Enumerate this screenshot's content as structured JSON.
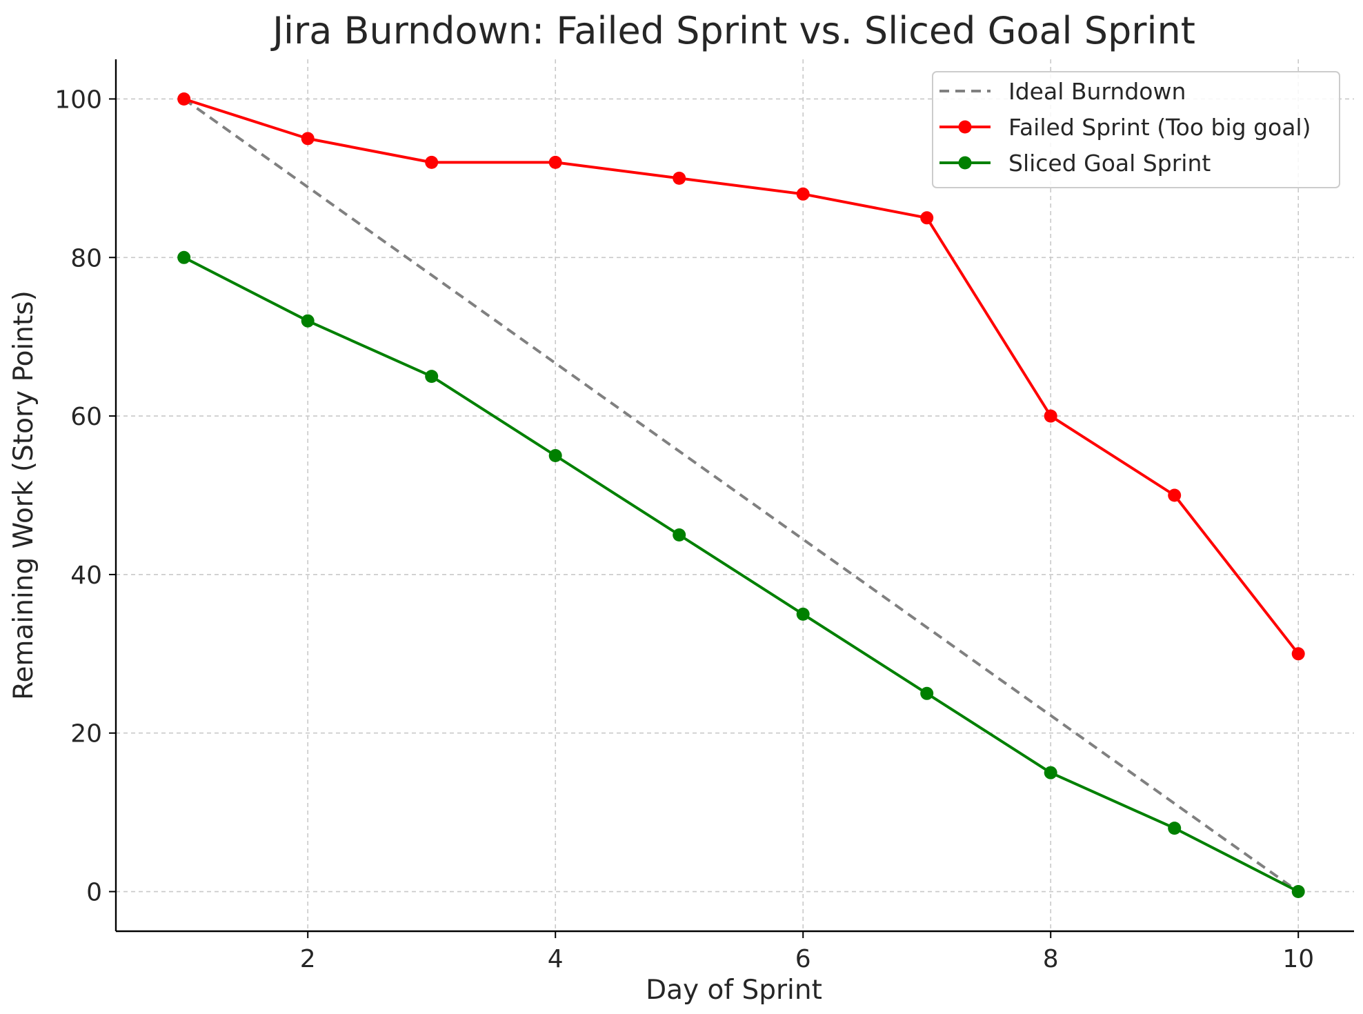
{
  "chart_data": {
    "type": "line",
    "title": "Jira Burndown: Failed Sprint vs. Sliced Goal Sprint",
    "xlabel": "Day of Sprint",
    "ylabel": "Remaining Work (Story Points)",
    "x": [
      1,
      2,
      3,
      4,
      5,
      6,
      7,
      8,
      9,
      10
    ],
    "xlim": [
      0.45,
      10.45
    ],
    "ylim": [
      -5,
      105
    ],
    "xticks": [
      2,
      4,
      6,
      8,
      10
    ],
    "yticks": [
      0,
      20,
      40,
      60,
      80,
      100
    ],
    "grid": true,
    "legend_position": "top-right",
    "series": [
      {
        "name": "Ideal Burndown",
        "style": "dashed",
        "markers": false,
        "color": "#808080",
        "x": [
          1,
          10
        ],
        "values": [
          100,
          0
        ]
      },
      {
        "name": "Failed Sprint (Too big goal)",
        "style": "solid",
        "markers": true,
        "color": "#ff0000",
        "x": [
          1,
          2,
          3,
          4,
          5,
          6,
          7,
          8,
          9,
          10
        ],
        "values": [
          100,
          95,
          92,
          92,
          90,
          88,
          85,
          60,
          50,
          30
        ]
      },
      {
        "name": "Sliced Goal Sprint",
        "style": "solid",
        "markers": true,
        "color": "#008000",
        "x": [
          1,
          2,
          3,
          4,
          5,
          6,
          7,
          8,
          9,
          10
        ],
        "values": [
          80,
          72,
          65,
          55,
          45,
          35,
          25,
          15,
          8,
          0
        ]
      }
    ]
  }
}
